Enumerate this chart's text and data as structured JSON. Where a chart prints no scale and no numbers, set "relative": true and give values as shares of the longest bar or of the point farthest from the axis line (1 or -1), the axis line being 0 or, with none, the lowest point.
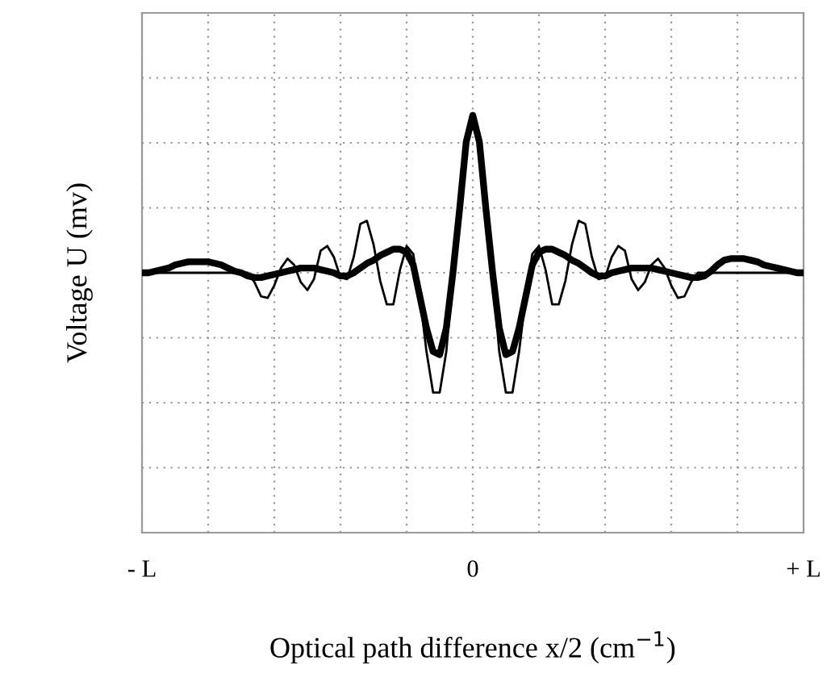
{
  "chart_data": {
    "type": "line",
    "relative": true,
    "xlabel": "Optical path difference x/2 (cm$^{−1}$)",
    "ylabel": "Voltage U (mv)",
    "categories": [
      "- L",
      null,
      null,
      null,
      null,
      null,
      null,
      null,
      null,
      null,
      null,
      null,
      null,
      null,
      null,
      null,
      null,
      null,
      null,
      null,
      null,
      null,
      null,
      null,
      null,
      null,
      null,
      null,
      null,
      null,
      null,
      null,
      null,
      null,
      null,
      null,
      null,
      null,
      null,
      null,
      null,
      null,
      null,
      null,
      null,
      null,
      null,
      null,
      null,
      null,
      "0",
      null,
      null,
      null,
      null,
      null,
      null,
      null,
      null,
      null,
      null,
      null,
      null,
      null,
      null,
      null,
      null,
      null,
      null,
      null,
      null,
      null,
      null,
      null,
      null,
      null,
      null,
      null,
      null,
      null,
      null,
      null,
      null,
      null,
      null,
      null,
      null,
      null,
      null,
      null,
      null,
      null,
      null,
      null,
      null,
      null,
      null,
      null,
      null,
      null,
      "+ L"
    ],
    "grid": true,
    "tick_labels": "x",
    "line_style": "solid",
    "series": [
      {
        "color": "#000000",
        "values": [
          0,
          0,
          0,
          0,
          0,
          0,
          0,
          0,
          0,
          0,
          0,
          0,
          0,
          0,
          0,
          0,
          0,
          -0.06,
          -0.15,
          -0.16,
          -0.08,
          0.03,
          0.09,
          0.05,
          -0.06,
          -0.11,
          -0.04,
          0.14,
          0.17,
          0.1,
          -0.03,
          -0.04,
          0.1,
          0.31,
          0.33,
          0.18,
          -0.05,
          -0.2,
          -0.2,
          0.02,
          0.17,
          0.12,
          -0.15,
          -0.5,
          -0.76,
          -0.76,
          -0.5,
          -0.02,
          0.45,
          0.85,
          1.0,
          0.85,
          0.45,
          -0.02,
          -0.5,
          -0.76,
          -0.76,
          -0.5,
          -0.15,
          0.12,
          0.17,
          0.02,
          -0.2,
          -0.2,
          -0.05,
          0.18,
          0.33,
          0.31,
          0.1,
          -0.04,
          -0.03,
          0.1,
          0.17,
          0.14,
          -0.04,
          -0.11,
          -0.06,
          0.05,
          0.09,
          0.03,
          -0.08,
          -0.16,
          -0.15,
          -0.06,
          0,
          0,
          0,
          0,
          0,
          0,
          0,
          0,
          0,
          0,
          0,
          0,
          0,
          0,
          0,
          0,
          0
        ]
      },
      {
        "color": "#000000",
        "values": [
          0,
          0,
          0.01,
          0.02,
          0.03,
          0.05,
          0.06,
          0.07,
          0.07,
          0.07,
          0.07,
          0.06,
          0.05,
          0.03,
          0.01,
          0,
          -0.02,
          -0.03,
          -0.03,
          -0.02,
          -0.01,
          0,
          0.01,
          0.02,
          0.03,
          0.03,
          0.03,
          0.02,
          0.01,
          0,
          -0.02,
          -0.02,
          0,
          0.03,
          0.06,
          0.08,
          0.11,
          0.13,
          0.15,
          0.15,
          0.13,
          0.05,
          -0.15,
          -0.35,
          -0.5,
          -0.52,
          -0.35,
          0,
          0.4,
          0.83,
          1.0,
          0.83,
          0.4,
          0,
          -0.35,
          -0.52,
          -0.5,
          -0.35,
          -0.15,
          0.05,
          0.13,
          0.15,
          0.15,
          0.13,
          0.11,
          0.08,
          0.06,
          0.03,
          0,
          -0.02,
          -0.02,
          0,
          0.01,
          0.02,
          0.03,
          0.03,
          0.03,
          0.03,
          0.02,
          0.01,
          0,
          -0.01,
          -0.02,
          -0.03,
          -0.03,
          -0.02,
          0.01,
          0.05,
          0.08,
          0.09,
          0.09,
          0.09,
          0.08,
          0.07,
          0.05,
          0.04,
          0.03,
          0.02,
          0.01,
          0,
          0
        ]
      }
    ]
  }
}
